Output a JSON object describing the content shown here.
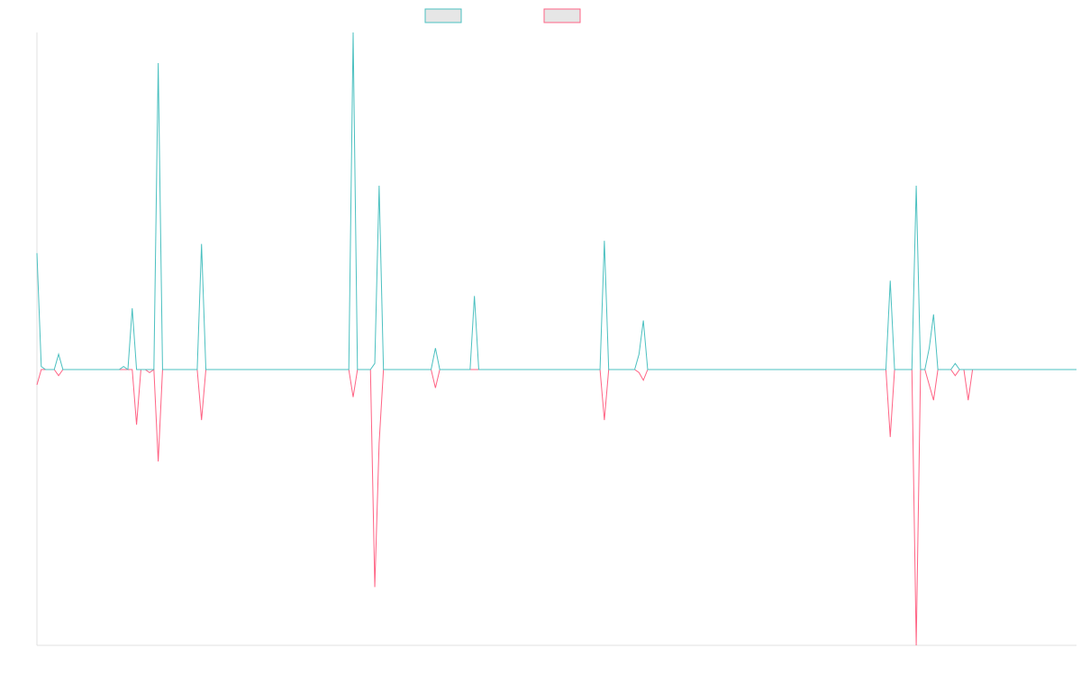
{
  "chart_data": {
    "type": "line",
    "ylim": [
      -90,
      110
    ],
    "series": [
      {
        "color": "#4bc0c0",
        "values": [
          38,
          1,
          0,
          0,
          0,
          5,
          0,
          0,
          0,
          0,
          0,
          0,
          0,
          0,
          0,
          0,
          0,
          0,
          0,
          0,
          1,
          0,
          20,
          0,
          0,
          0,
          0,
          0,
          100,
          0,
          0,
          0,
          0,
          0,
          0,
          0,
          0,
          0,
          41,
          0,
          0,
          0,
          0,
          0,
          0,
          0,
          0,
          0,
          0,
          0,
          0,
          0,
          0,
          0,
          0,
          0,
          0,
          0,
          0,
          0,
          0,
          0,
          0,
          0,
          0,
          0,
          0,
          0,
          0,
          0,
          0,
          0,
          0,
          110,
          0,
          0,
          0,
          0,
          2,
          60,
          0,
          0,
          0,
          0,
          0,
          0,
          0,
          0,
          0,
          0,
          0,
          0,
          7,
          0,
          0,
          0,
          0,
          0,
          0,
          0,
          0,
          24,
          0,
          0,
          0,
          0,
          0,
          0,
          0,
          0,
          0,
          0,
          0,
          0,
          0,
          0,
          0,
          0,
          0,
          0,
          0,
          0,
          0,
          0,
          0,
          0,
          0,
          0,
          0,
          0,
          0,
          42,
          0,
          0,
          0,
          0,
          0,
          0,
          0,
          5,
          16,
          0,
          0,
          0,
          0,
          0,
          0,
          0,
          0,
          0,
          0,
          0,
          0,
          0,
          0,
          0,
          0,
          0,
          0,
          0,
          0,
          0,
          0,
          0,
          0,
          0,
          0,
          0,
          0,
          0,
          0,
          0,
          0,
          0,
          0,
          0,
          0,
          0,
          0,
          0,
          0,
          0,
          0,
          0,
          0,
          0,
          0,
          0,
          0,
          0,
          0,
          0,
          0,
          0,
          0,
          0,
          0,
          29,
          0,
          0,
          0,
          0,
          0,
          60,
          0,
          0,
          7,
          18,
          0,
          0,
          0,
          0,
          2,
          0,
          0,
          0,
          0,
          0,
          0,
          0,
          0,
          0,
          0,
          0,
          0,
          0,
          0,
          0,
          0,
          0,
          0,
          0,
          0,
          0,
          0,
          0,
          0,
          0,
          0,
          0,
          0
        ]
      },
      {
        "color": "#ff6384",
        "values": [
          -5,
          0,
          0,
          0,
          0,
          -2,
          0,
          0,
          0,
          0,
          0,
          0,
          0,
          0,
          0,
          0,
          0,
          0,
          0,
          0,
          0,
          0,
          0,
          -18,
          0,
          0,
          -1,
          0,
          -30,
          0,
          0,
          0,
          0,
          0,
          0,
          0,
          0,
          0,
          -16.5,
          0,
          0,
          0,
          0,
          0,
          0,
          0,
          0,
          0,
          0,
          0,
          0,
          0,
          0,
          0,
          0,
          0,
          0,
          0,
          0,
          0,
          0,
          0,
          0,
          0,
          0,
          0,
          0,
          0,
          0,
          0,
          0,
          0,
          0,
          -9,
          0,
          0,
          0,
          0,
          -71,
          -24,
          0,
          0,
          0,
          0,
          0,
          0,
          0,
          0,
          0,
          0,
          0,
          0,
          -6,
          0,
          0,
          0,
          0,
          0,
          0,
          0,
          0,
          0,
          0,
          0,
          0,
          0,
          0,
          0,
          0,
          0,
          0,
          0,
          0,
          0,
          0,
          0,
          0,
          0,
          0,
          0,
          0,
          0,
          0,
          0,
          0,
          0,
          0,
          0,
          0,
          0,
          0,
          -16.5,
          0,
          0,
          0,
          0,
          0,
          0,
          0,
          -1,
          -3.5,
          0,
          0,
          0,
          0,
          0,
          0,
          0,
          0,
          0,
          0,
          0,
          0,
          0,
          0,
          0,
          0,
          0,
          0,
          0,
          0,
          0,
          0,
          0,
          0,
          0,
          0,
          0,
          0,
          0,
          0,
          0,
          0,
          0,
          0,
          0,
          0,
          0,
          0,
          0,
          0,
          0,
          0,
          0,
          0,
          0,
          0,
          0,
          0,
          0,
          0,
          0,
          0,
          0,
          0,
          0,
          0,
          -22,
          0,
          0,
          0,
          0,
          0,
          -90,
          0,
          0,
          -5,
          -10,
          0,
          0,
          0,
          0,
          -2,
          0,
          0,
          -10,
          0,
          0,
          0,
          0,
          0,
          0,
          0,
          0,
          0,
          0,
          0,
          0,
          0,
          0,
          0,
          0,
          0,
          0,
          0,
          0,
          0,
          0,
          0,
          0,
          0
        ]
      }
    ]
  }
}
